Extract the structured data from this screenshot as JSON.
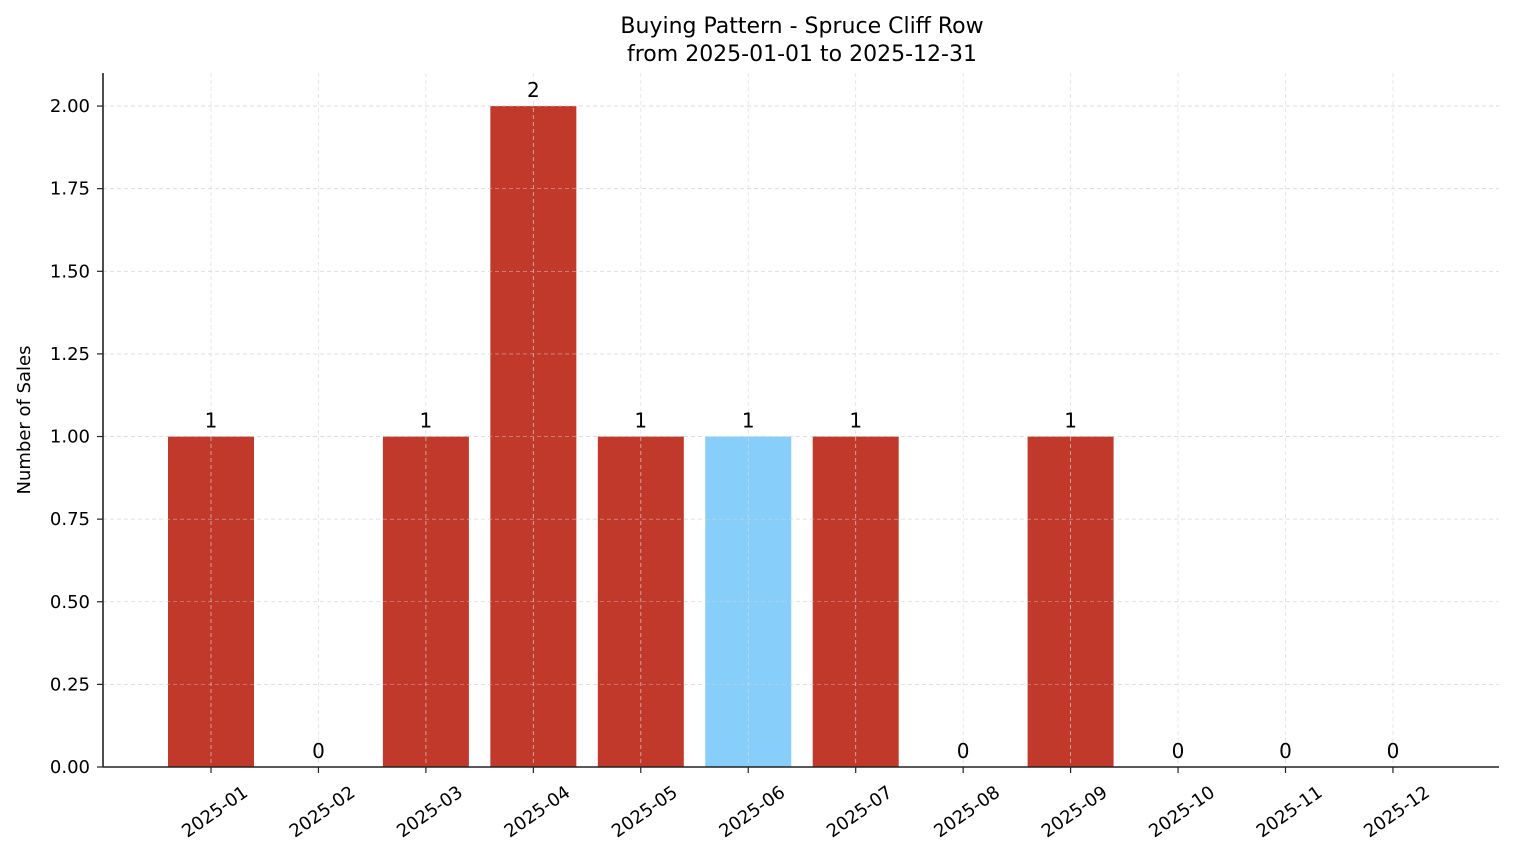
{
  "chart_data": {
    "type": "bar",
    "title": "Buying Pattern - Spruce Cliff Row",
    "subtitle": "from 2025-01-01 to 2025-12-31",
    "xlabel": "",
    "ylabel": "Number of Sales",
    "categories": [
      "2025-01",
      "2025-02",
      "2025-03",
      "2025-04",
      "2025-05",
      "2025-06",
      "2025-07",
      "2025-08",
      "2025-09",
      "2025-10",
      "2025-11",
      "2025-12"
    ],
    "values": [
      1,
      0,
      1,
      2,
      1,
      1,
      1,
      0,
      1,
      0,
      0,
      0
    ],
    "bar_colors": [
      "#c0392b",
      "#c0392b",
      "#c0392b",
      "#c0392b",
      "#c0392b",
      "#87cefa",
      "#c0392b",
      "#c0392b",
      "#c0392b",
      "#c0392b",
      "#c0392b",
      "#c0392b"
    ],
    "highlighted_category": "2025-06",
    "ylim": [
      0,
      2.1
    ],
    "yticks": [
      0,
      0.25,
      0.5,
      0.75,
      1.0,
      1.25,
      1.5,
      1.75,
      2.0
    ],
    "ytick_labels": [
      "0.00",
      "0.25",
      "0.50",
      "0.75",
      "1.00",
      "1.25",
      "1.50",
      "1.75",
      "2.00"
    ],
    "grid": true,
    "data_labels": true,
    "xtick_rotation": 35,
    "legend": null
  },
  "colors": {
    "bar": "#c0392b",
    "highlight": "#87cefa",
    "grid": "#d9d9d9",
    "axis": "#222222"
  }
}
